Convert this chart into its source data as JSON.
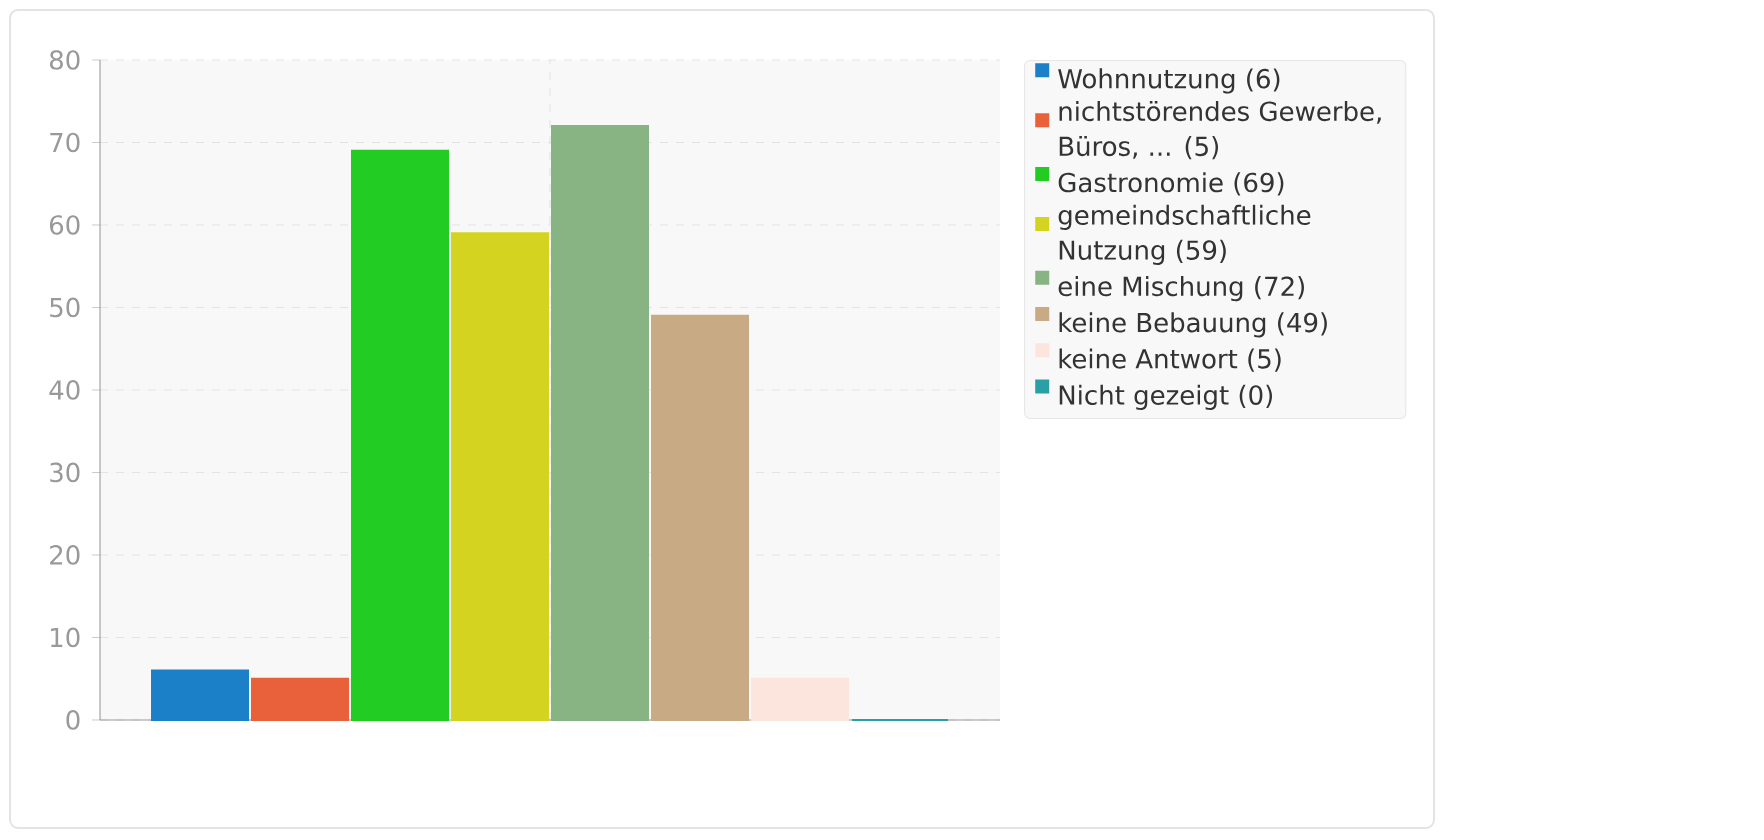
{
  "chart_data": {
    "type": "bar",
    "categories": [
      null
    ],
    "series": [
      {
        "name": "Wohnnutzung (6)",
        "color": "#1b80c8",
        "values": [
          6
        ]
      },
      {
        "name": "nichtstörendes Gewerbe, Büros, ... (5)",
        "color": "#e8613a",
        "values": [
          5
        ]
      },
      {
        "name": "Gastronomie (69)",
        "color": "#22cc22",
        "values": [
          69
        ]
      },
      {
        "name": "gemeindschaftliche Nutzung (59)",
        "color": "#d4d420",
        "values": [
          59
        ]
      },
      {
        "name": "eine Mischung (72)",
        "color": "#88b383",
        "values": [
          72
        ]
      },
      {
        "name": "keine Bebauung (49)",
        "color": "#c8aa84",
        "values": [
          49
        ]
      },
      {
        "name": "keine Antwort (5)",
        "color": "#fbe5dc",
        "values": [
          5
        ]
      },
      {
        "name": "Nicht gezeigt (0)",
        "color": "#2a9fa8",
        "values": [
          0
        ]
      }
    ],
    "ylim": [
      0,
      80
    ],
    "yticks": [
      0,
      10,
      20,
      30,
      40,
      50,
      60,
      70,
      80
    ],
    "grid": true,
    "legend": "top right"
  }
}
